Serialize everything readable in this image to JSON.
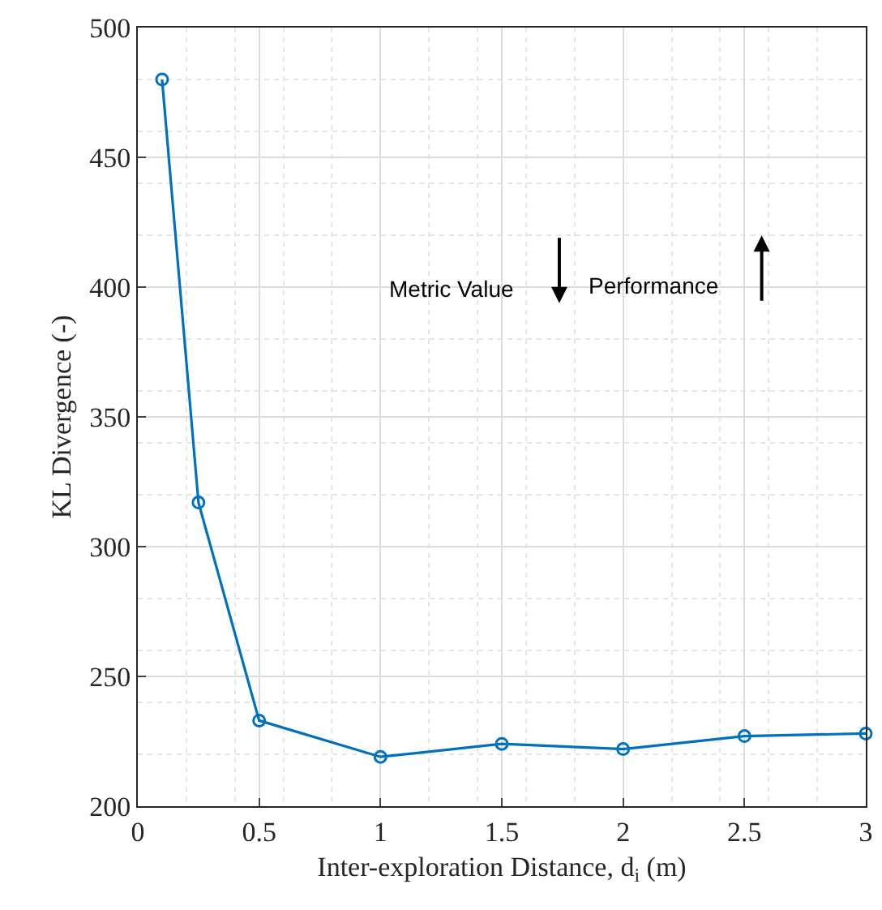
{
  "chart_data": {
    "type": "line",
    "xlabel": "Inter-exploration Distance, d$_{i}$ (m)",
    "ylabel": "KL Divergence (-)",
    "x": [
      0.1,
      0.25,
      0.5,
      1,
      1.5,
      2,
      2.5,
      3
    ],
    "series": [
      {
        "color": "#0072bd",
        "values": [
          480,
          317,
          233,
          219,
          224,
          222,
          227,
          228
        ]
      }
    ],
    "xlim": [
      0,
      3
    ],
    "xticks": [
      0,
      0.5,
      1,
      1.5,
      2,
      2.5,
      3
    ],
    "ylim": [
      200,
      500
    ],
    "yticks": [
      200,
      250,
      300,
      350,
      400,
      450,
      500
    ],
    "grid": true,
    "marker": "circle",
    "line_style": "solid",
    "legend": false,
    "annotations": [
      "Metric Value",
      "Performance"
    ]
  }
}
